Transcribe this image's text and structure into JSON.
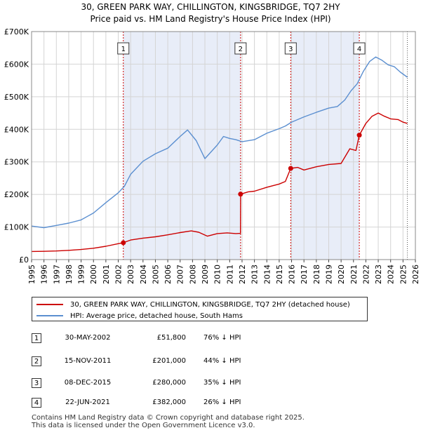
{
  "title_line1": "30, GREEN PARK WAY, CHILLINGTON, KINGSBRIDGE, TQ7 2HY",
  "title_line2": "Price paid vs. HM Land Registry's House Price Index (HPI)",
  "colors": {
    "property_line": "#cc0000",
    "hpi_line": "#5b8fd0",
    "shade": "#e8edf8",
    "grid": "#d4d4d4",
    "marker_box": "#333333"
  },
  "chart_data": {
    "type": "line",
    "xlim": [
      1995,
      2026
    ],
    "ylim": [
      0,
      700000
    ],
    "y_ticks": [
      {
        "value": 0,
        "label": "£0"
      },
      {
        "value": 100000,
        "label": "£100K"
      },
      {
        "value": 200000,
        "label": "£200K"
      },
      {
        "value": 300000,
        "label": "£300K"
      },
      {
        "value": 400000,
        "label": "£400K"
      },
      {
        "value": 500000,
        "label": "£500K"
      },
      {
        "value": 600000,
        "label": "£600K"
      },
      {
        "value": 700000,
        "label": "£700K"
      }
    ],
    "x_ticks": [
      "1995",
      "1996",
      "1997",
      "1998",
      "1999",
      "2000",
      "2001",
      "2002",
      "2003",
      "2004",
      "2005",
      "2006",
      "2007",
      "2008",
      "2009",
      "2010",
      "2011",
      "2012",
      "2013",
      "2014",
      "2015",
      "2016",
      "2017",
      "2018",
      "2019",
      "2020",
      "2021",
      "2022",
      "2023",
      "2024",
      "2025",
      "2026"
    ],
    "series": [
      {
        "name": "30, GREEN PARK WAY, CHILLINGTON, KINGSBRIDGE, TQ7 2HY (detached house)",
        "color": "#cc0000",
        "points": [
          [
            1995.0,
            25000
          ],
          [
            1996.0,
            25500
          ],
          [
            1997.0,
            26500
          ],
          [
            1998.0,
            28500
          ],
          [
            1999.0,
            31000
          ],
          [
            2000.0,
            35000
          ],
          [
            2001.0,
            41000
          ],
          [
            2002.0,
            49000
          ],
          [
            2002.41,
            51800
          ],
          [
            2003.0,
            60000
          ],
          [
            2004.0,
            66000
          ],
          [
            2005.0,
            70000
          ],
          [
            2006.0,
            76000
          ],
          [
            2007.0,
            83000
          ],
          [
            2007.9,
            88000
          ],
          [
            2008.5,
            84000
          ],
          [
            2009.2,
            72000
          ],
          [
            2010.0,
            80000
          ],
          [
            2010.8,
            82000
          ],
          [
            2011.5,
            80000
          ],
          [
            2011.87,
            80500
          ],
          [
            2011.88,
            201000
          ],
          [
            2012.5,
            208000
          ],
          [
            2013.0,
            210000
          ],
          [
            2014.0,
            222000
          ],
          [
            2015.0,
            232000
          ],
          [
            2015.5,
            240000
          ],
          [
            2015.93,
            280000
          ],
          [
            2016.5,
            283000
          ],
          [
            2017.0,
            275000
          ],
          [
            2018.0,
            285000
          ],
          [
            2019.0,
            292000
          ],
          [
            2020.0,
            295000
          ],
          [
            2020.7,
            340000
          ],
          [
            2021.2,
            335000
          ],
          [
            2021.47,
            382000
          ],
          [
            2022.0,
            418000
          ],
          [
            2022.5,
            440000
          ],
          [
            2023.0,
            450000
          ],
          [
            2023.5,
            440000
          ],
          [
            2024.0,
            432000
          ],
          [
            2024.6,
            430000
          ],
          [
            2025.0,
            422000
          ],
          [
            2025.35,
            418000
          ]
        ]
      },
      {
        "name": "HPI: Average price, detached house, South Hams",
        "color": "#5b8fd0",
        "points": [
          [
            1995.0,
            103000
          ],
          [
            1996.0,
            98000
          ],
          [
            1997.0,
            105000
          ],
          [
            1998.0,
            112000
          ],
          [
            1999.0,
            122000
          ],
          [
            2000.0,
            143000
          ],
          [
            2001.0,
            175000
          ],
          [
            2002.0,
            205000
          ],
          [
            2002.5,
            225000
          ],
          [
            2003.0,
            262000
          ],
          [
            2004.0,
            302000
          ],
          [
            2005.0,
            325000
          ],
          [
            2006.0,
            342000
          ],
          [
            2007.0,
            378000
          ],
          [
            2007.6,
            398000
          ],
          [
            2008.3,
            365000
          ],
          [
            2009.0,
            310000
          ],
          [
            2010.0,
            352000
          ],
          [
            2010.5,
            378000
          ],
          [
            2011.0,
            372000
          ],
          [
            2011.5,
            368000
          ],
          [
            2012.0,
            362000
          ],
          [
            2013.0,
            368000
          ],
          [
            2014.0,
            388000
          ],
          [
            2015.0,
            402000
          ],
          [
            2015.5,
            410000
          ],
          [
            2016.0,
            422000
          ],
          [
            2017.0,
            438000
          ],
          [
            2018.0,
            452000
          ],
          [
            2019.0,
            465000
          ],
          [
            2019.7,
            470000
          ],
          [
            2020.3,
            490000
          ],
          [
            2020.8,
            518000
          ],
          [
            2021.3,
            540000
          ],
          [
            2021.8,
            578000
          ],
          [
            2022.3,
            608000
          ],
          [
            2022.8,
            622000
          ],
          [
            2023.3,
            612000
          ],
          [
            2023.8,
            598000
          ],
          [
            2024.3,
            592000
          ],
          [
            2024.8,
            575000
          ],
          [
            2025.35,
            560000
          ]
        ]
      }
    ],
    "sales": [
      {
        "id": "1",
        "x": 2002.41,
        "value": 51800
      },
      {
        "id": "2",
        "x": 2011.88,
        "value": 201000
      },
      {
        "id": "3",
        "x": 2015.93,
        "value": 280000
      },
      {
        "id": "4",
        "x": 2021.47,
        "value": 382000
      }
    ]
  },
  "legend": {
    "property": "30, GREEN PARK WAY, CHILLINGTON, KINGSBRIDGE, TQ7 2HY (detached house)",
    "hpi": "HPI: Average price, detached house, South Hams"
  },
  "sales_table": [
    {
      "num": "1",
      "date": "30-MAY-2002",
      "price": "£51,800",
      "hpi": "76% ↓ HPI"
    },
    {
      "num": "2",
      "date": "15-NOV-2011",
      "price": "£201,000",
      "hpi": "44% ↓ HPI"
    },
    {
      "num": "3",
      "date": "08-DEC-2015",
      "price": "£280,000",
      "hpi": "35% ↓ HPI"
    },
    {
      "num": "4",
      "date": "22-JUN-2021",
      "price": "£382,000",
      "hpi": "26% ↓ HPI"
    }
  ],
  "footer_line1": "Contains HM Land Registry data © Crown copyright and database right 2025.",
  "footer_line2": "This data is licensed under the Open Government Licence v3.0."
}
